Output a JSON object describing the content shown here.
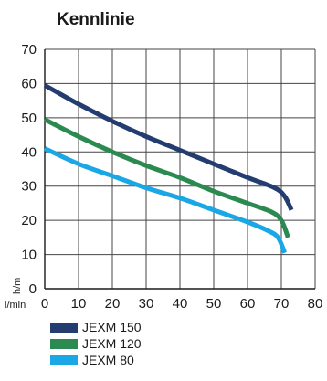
{
  "chart_data": {
    "type": "line",
    "title": "Kennlinie",
    "ylabel": "h/m",
    "xlabel": "l/min",
    "xlim": [
      0,
      80
    ],
    "ylim": [
      0,
      70
    ],
    "x_ticks": [
      0,
      10,
      20,
      30,
      40,
      50,
      60,
      70,
      80
    ],
    "y_ticks": [
      0,
      10,
      20,
      30,
      40,
      50,
      60,
      70
    ],
    "grid": true,
    "legend_position": "bottom-left",
    "series": [
      {
        "name": "JEXM 150",
        "color": "#233d70",
        "points": [
          [
            0,
            59.5
          ],
          [
            10,
            54
          ],
          [
            20,
            49
          ],
          [
            30,
            44.5
          ],
          [
            40,
            40.5
          ],
          [
            50,
            36.5
          ],
          [
            60,
            32.5
          ],
          [
            68,
            29.5
          ],
          [
            71,
            27
          ],
          [
            73,
            23
          ]
        ]
      },
      {
        "name": "JEXM 120",
        "color": "#2b8a4f",
        "points": [
          [
            0,
            49.5
          ],
          [
            10,
            44.5
          ],
          [
            20,
            40
          ],
          [
            30,
            36
          ],
          [
            40,
            32.5
          ],
          [
            50,
            28.5
          ],
          [
            60,
            25
          ],
          [
            67,
            22.5
          ],
          [
            70,
            20
          ],
          [
            72,
            15
          ]
        ]
      },
      {
        "name": "JEXM 80",
        "color": "#1aa7e6",
        "points": [
          [
            0,
            41
          ],
          [
            10,
            36.5
          ],
          [
            20,
            33
          ],
          [
            30,
            29.5
          ],
          [
            40,
            26.5
          ],
          [
            50,
            23
          ],
          [
            60,
            19.5
          ],
          [
            66,
            17
          ],
          [
            69,
            15
          ],
          [
            71,
            10.5
          ]
        ]
      }
    ]
  }
}
